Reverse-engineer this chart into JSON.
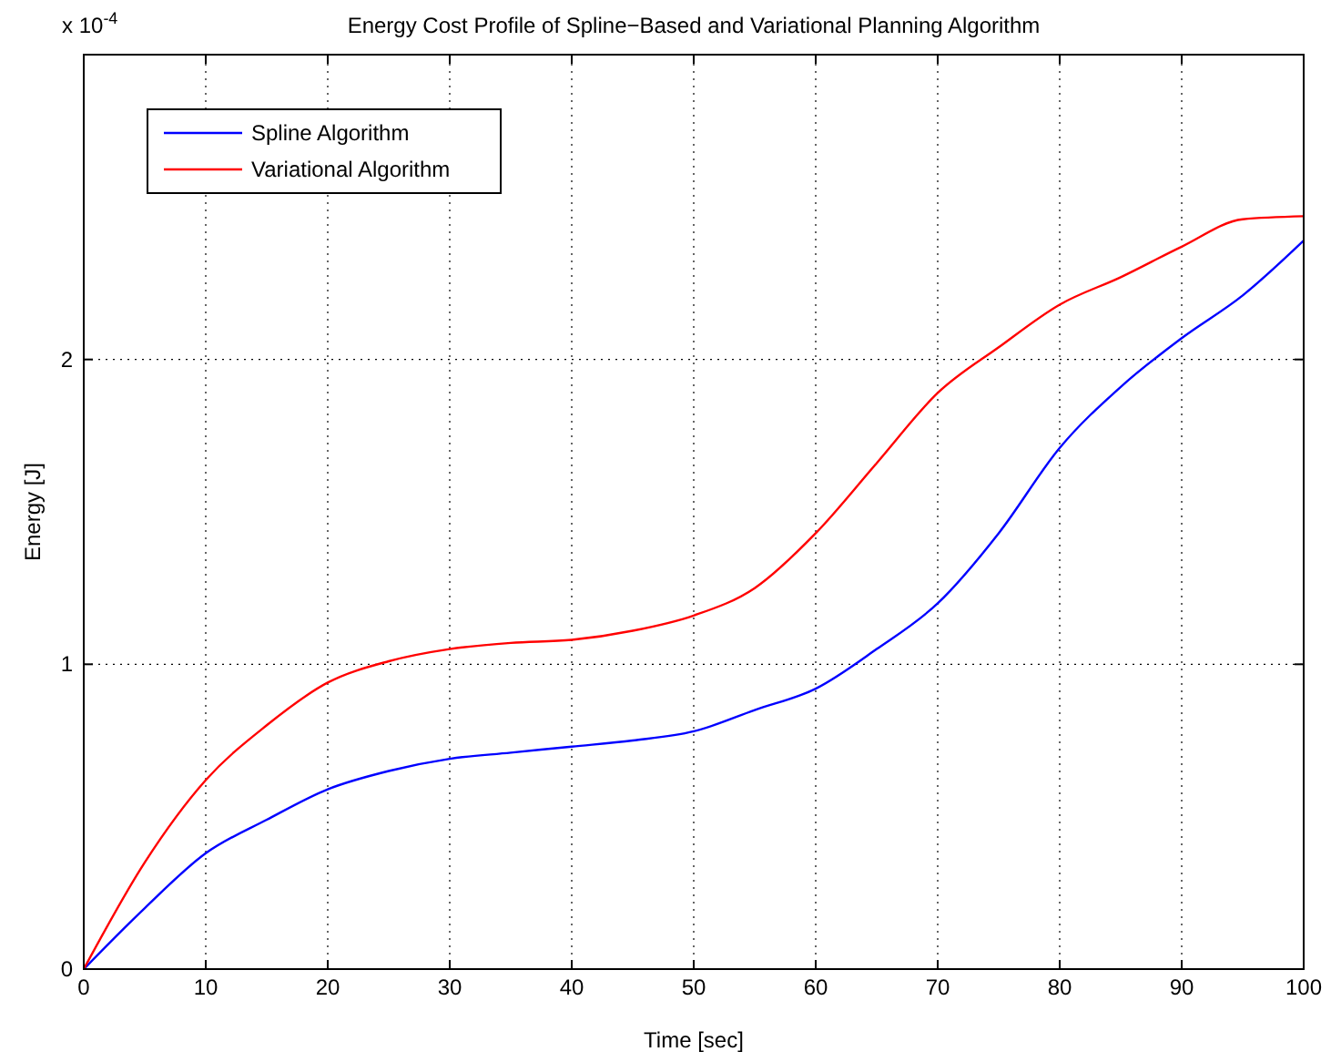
{
  "chart_data": {
    "type": "line",
    "title": "Energy Cost Profile of Spline−Based and Variational Planning Algorithm",
    "xlabel": "Time [sec]",
    "ylabel": "Energy [J]",
    "annotations": [
      "x 10$^{-4}$"
    ],
    "xlim": [
      0,
      100
    ],
    "xticks": [
      0,
      10,
      20,
      30,
      40,
      50,
      60,
      70,
      80,
      90,
      100
    ],
    "ylim": [
      0,
      3
    ],
    "yticks": [
      0,
      1,
      2
    ],
    "grid": true,
    "legend": "top left",
    "x": [
      0,
      5,
      10,
      15,
      20,
      25,
      30,
      35,
      40,
      45,
      50,
      55,
      60,
      65,
      70,
      75,
      80,
      85,
      90,
      95,
      100
    ],
    "series": [
      {
        "name": "Spline Algorithm",
        "color": "#0000ff",
        "values": [
          0,
          0.2,
          0.38,
          0.49,
          0.59,
          0.65,
          0.69,
          0.71,
          0.73,
          0.75,
          0.78,
          0.85,
          0.92,
          1.05,
          1.2,
          1.43,
          1.71,
          1.91,
          2.07,
          2.21,
          2.39
        ]
      },
      {
        "name": "Variational Algorithm",
        "color": "#ff0000",
        "values": [
          0,
          0.35,
          0.62,
          0.8,
          0.94,
          1.01,
          1.05,
          1.07,
          1.08,
          1.11,
          1.16,
          1.25,
          1.43,
          1.66,
          1.89,
          2.04,
          2.18,
          2.27,
          2.37,
          2.46,
          2.47
        ]
      }
    ]
  }
}
